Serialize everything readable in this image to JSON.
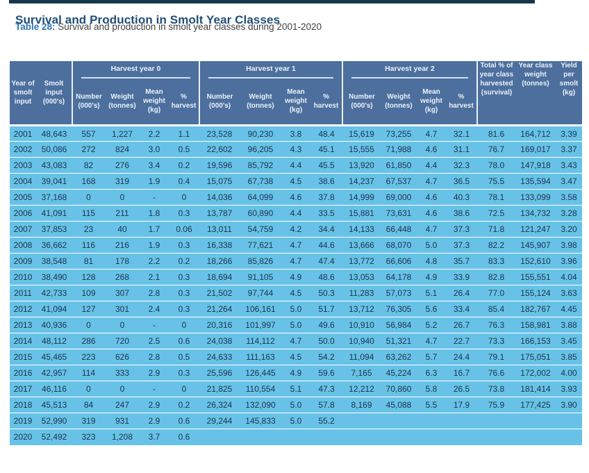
{
  "page": {
    "title": "Survival and Production in Smolt Year Classes",
    "table_label": "Table 28:",
    "table_caption": " Survival and production in smolt year classes during 2001-2020"
  },
  "table": {
    "corner_headers": [
      "Year of smolt input",
      "Smolt input (000's)"
    ],
    "group_headers": [
      "Harvest year 0",
      "Harvest year 1",
      "Harvest year 2"
    ],
    "sub_headers": [
      "Number (000's)",
      "Weight (tonnes)",
      "Mean weight (kg)",
      "% harvest"
    ],
    "tail_headers": [
      "Total % of year class harvested (survival)",
      "Year class weight (tonnes)",
      "Yield per smolt (kg)"
    ],
    "rows": [
      [
        "2001",
        "48,643",
        "557",
        "1,227",
        "2.2",
        "1.1",
        "23,528",
        "90,230",
        "3.8",
        "48.4",
        "15,619",
        "73,255",
        "4.7",
        "32.1",
        "81.6",
        "164,712",
        "3.39"
      ],
      [
        "2002",
        "50,086",
        "272",
        "824",
        "3.0",
        "0.5",
        "22,602",
        "96,205",
        "4.3",
        "45.1",
        "15,555",
        "71,988",
        "4.6",
        "31.1",
        "76.7",
        "169,017",
        "3.37"
      ],
      [
        "2003",
        "43,083",
        "82",
        "276",
        "3.4",
        "0.2",
        "19,596",
        "85,792",
        "4.4",
        "45.5",
        "13,920",
        "61,850",
        "4.4",
        "32.3",
        "78.0",
        "147,918",
        "3.43"
      ],
      [
        "2004",
        "39,041",
        "168",
        "319",
        "1.9",
        "0.4",
        "15,075",
        "67,738",
        "4.5",
        "38.6",
        "14,237",
        "67,537",
        "4.7",
        "36.5",
        "75.5",
        "135,594",
        "3.47"
      ],
      [
        "2005",
        "37,168",
        "0",
        "0",
        "-",
        "0",
        "14,036",
        "64,099",
        "4.6",
        "37.8",
        "14,999",
        "69,000",
        "4.6",
        "40.3",
        "78.1",
        "133,099",
        "3.58"
      ],
      [
        "2006",
        "41,091",
        "115",
        "211",
        "1.8",
        "0.3",
        "13,787",
        "60,890",
        "4.4",
        "33.5",
        "15,881",
        "73,631",
        "4.6",
        "38.6",
        "72.5",
        "134,732",
        "3.28"
      ],
      [
        "2007",
        "37,853",
        "23",
        "40",
        "1.7",
        "0.06",
        "13,011",
        "54,759",
        "4.2",
        "34.4",
        "14,133",
        "66,448",
        "4.7",
        "37.3",
        "71.8",
        "121,247",
        "3.20"
      ],
      [
        "2008",
        "36,662",
        "116",
        "216",
        "1.9",
        "0.3",
        "16,338",
        "77,621",
        "4.7",
        "44.6",
        "13,666",
        "68,070",
        "5.0",
        "37.3",
        "82.2",
        "145,907",
        "3.98"
      ],
      [
        "2009",
        "38,548",
        "81",
        "178",
        "2.2",
        "0.2",
        "18,266",
        "85,826",
        "4.7",
        "47.4",
        "13,772",
        "66,606",
        "4.8",
        "35.7",
        "83.3",
        "152,610",
        "3.96"
      ],
      [
        "2010",
        "38,490",
        "128",
        "268",
        "2.1",
        "0.3",
        "18,694",
        "91,105",
        "4.9",
        "48.6",
        "13,053",
        "64,178",
        "4.9",
        "33.9",
        "82.8",
        "155,551",
        "4.04"
      ],
      [
        "2011",
        "42,733",
        "109",
        "307",
        "2.8",
        "0.3",
        "21,502",
        "97,744",
        "4.5",
        "50.3",
        "11,283",
        "57,073",
        "5.1",
        "26.4",
        "77.0",
        "155,124",
        "3.63"
      ],
      [
        "2012",
        "41,094",
        "127",
        "301",
        "2.4",
        "0.3",
        "21,264",
        "106,161",
        "5.0",
        "51.7",
        "13,712",
        "76,305",
        "5.6",
        "33.4",
        "85.4",
        "182,767",
        "4.45"
      ],
      [
        "2013",
        "40,936",
        "0",
        "0",
        "-",
        "0",
        "20,316",
        "101,997",
        "5.0",
        "49.6",
        "10,910",
        "56,984",
        "5.2",
        "26.7",
        "76.3",
        "158,981",
        "3.88"
      ],
      [
        "2014",
        "48,112",
        "286",
        "720",
        "2.5",
        "0.6",
        "24,038",
        "114,112",
        "4.7",
        "50.0",
        "10,940",
        "51,321",
        "4.7",
        "22.7",
        "73.3",
        "166,153",
        "3.45"
      ],
      [
        "2015",
        "45,465",
        "223",
        "626",
        "2.8",
        "0.5",
        "24,633",
        "111,163",
        "4.5",
        "54.2",
        "11,094",
        "63,262",
        "5.7",
        "24.4",
        "79.1",
        "175,051",
        "3.85"
      ],
      [
        "2016",
        "42,957",
        "114",
        "333",
        "2.9",
        "0.3",
        "25,596",
        "126,445",
        "4.9",
        "59.6",
        "7,165",
        "45,224",
        "6.3",
        "16.7",
        "76.6",
        "172,002",
        "4.00"
      ],
      [
        "2017",
        "46,116",
        "0",
        "0",
        "-",
        "0",
        "21,825",
        "110,554",
        "5.1",
        "47.3",
        "12,212",
        "70,860",
        "5.8",
        "26.5",
        "73.8",
        "181,414",
        "3.93"
      ],
      [
        "2018",
        "45,513",
        "84",
        "247",
        "2.9",
        "0.2",
        "26,324",
        "132,090",
        "5.0",
        "57.8",
        "8,169",
        "45,088",
        "5.5",
        "17.9",
        "75.9",
        "177,425",
        "3.90"
      ],
      [
        "2019",
        "52,990",
        "319",
        "931",
        "2.9",
        "0.6",
        "29,244",
        "145,833",
        "5.0",
        "55.2",
        "",
        "",
        "",
        "",
        "",
        "",
        ""
      ],
      [
        "2020",
        "52,492",
        "323",
        "1,208",
        "3.7",
        "0.6",
        "",
        "",
        "",
        "",
        "",
        "",
        "",
        "",
        "",
        "",
        ""
      ]
    ]
  },
  "colors": {
    "title_blue": "#1f4e79",
    "label_blue": "#2e74b5",
    "subtitle_text": "#3f3f3f",
    "header_bg": "#4d6f9e",
    "header_text": "#eaf1f9",
    "body_bg": "#68c2e8",
    "body_text": "#1b3348",
    "top_bar": "#16394a",
    "separator": "#ffffff"
  }
}
